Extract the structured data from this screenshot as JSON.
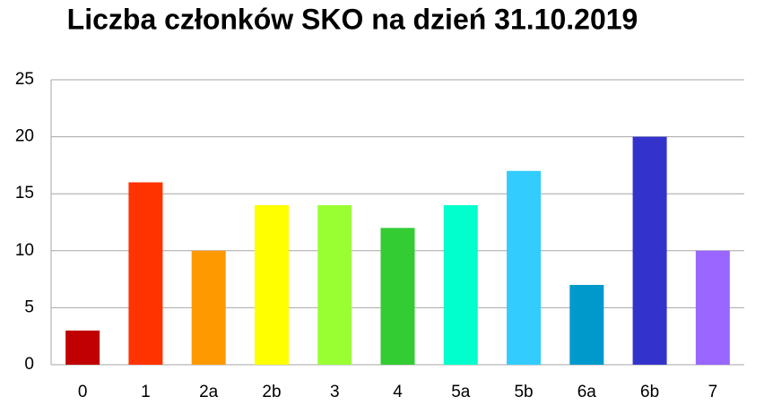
{
  "chart_data": {
    "type": "bar",
    "title": "Liczba członków SKO na dzień 31.10.2019",
    "categories": [
      "0",
      "1",
      "2a",
      "2b",
      "3",
      "4",
      "5a",
      "5b",
      "6a",
      "6b",
      "7"
    ],
    "values": [
      3,
      16,
      10,
      14,
      14,
      12,
      14,
      17,
      7,
      20,
      10
    ],
    "colors": [
      "#c00000",
      "#ff3300",
      "#ff9900",
      "#ffff00",
      "#99ff33",
      "#33cc33",
      "#00ffcc",
      "#33ccff",
      "#0099cc",
      "#3333cc",
      "#9966ff"
    ],
    "ylim": [
      0,
      25
    ],
    "yticks": [
      0,
      5,
      10,
      15,
      20,
      25
    ],
    "grid": true
  }
}
